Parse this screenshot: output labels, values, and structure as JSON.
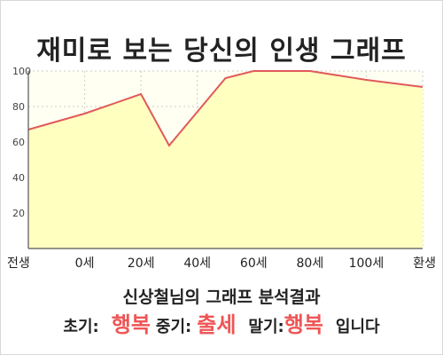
{
  "chart_data": {
    "type": "area",
    "title": "재미로 보는 당신의 인생 그래프",
    "x_labels": [
      "전생",
      "0세",
      "20세",
      "40세",
      "60세",
      "80세",
      "100세",
      "환생"
    ],
    "series": [
      {
        "x": [
          "전생",
          "0세",
          "20세",
          "30세",
          "50세",
          "60세",
          "80세",
          "100세",
          "환생"
        ],
        "values": [
          67,
          76,
          87,
          58,
          96,
          100,
          100,
          95,
          91
        ]
      }
    ],
    "ylim": [
      0,
      100
    ],
    "yticks": [
      20,
      40,
      60,
      80,
      100
    ],
    "grid": true,
    "colors": {
      "line": "#e05a5a",
      "fill": "#ffffc0",
      "grid": "#cccccc",
      "axis": "#555555"
    }
  },
  "summary": {
    "title": "신상철님의 그래프 분석결과",
    "early_label": "초기:",
    "early_value": "행복",
    "mid_label": "중기:",
    "mid_value": "출세",
    "late_label": "말기:",
    "late_value": "행복",
    "suffix": "입니다"
  }
}
